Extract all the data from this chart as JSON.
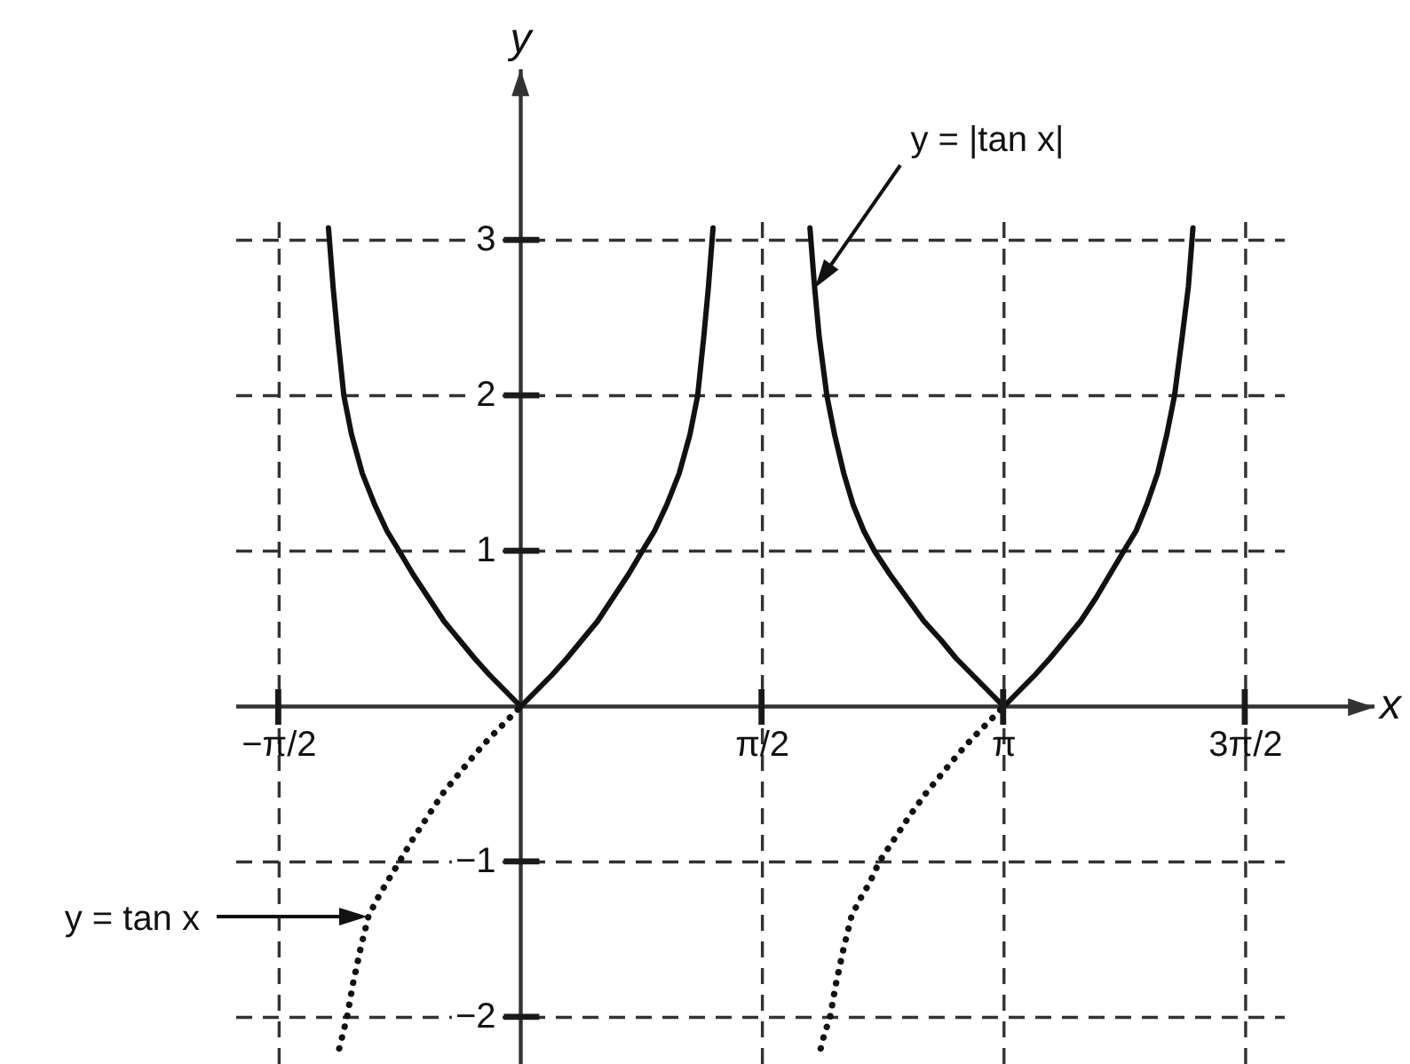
{
  "chart_data": {
    "type": "line",
    "xlabel": "x",
    "ylabel": "y",
    "xlim": [
      -1.85,
      5.55
    ],
    "ylim": [
      -2.3,
      4.1
    ],
    "xticks": [
      {
        "value": -1.5708,
        "label": "−π/2"
      },
      {
        "value": 1.5708,
        "label": "π/2"
      },
      {
        "value": 3.1416,
        "label": "π"
      },
      {
        "value": 4.7124,
        "label": "3π/2"
      }
    ],
    "yticks": [
      -2,
      -1,
      1,
      2,
      3
    ],
    "grid": true,
    "marker": "none",
    "series": [
      {
        "name": "y = |tan x|",
        "color": "#111111",
        "line_style": "solid",
        "x": [
          -1.25,
          -1.22,
          -1.19,
          -1.15,
          -1.1,
          -1.03,
          -0.95,
          -0.87,
          -0.79,
          -0.7,
          -0.6,
          -0.5,
          -0.4,
          -0.3,
          -0.2,
          -0.1,
          0,
          0.1,
          0.2,
          0.3,
          0.4,
          0.5,
          0.6,
          0.7,
          0.79,
          0.87,
          0.95,
          1.03,
          1.1,
          1.15,
          1.19,
          1.22,
          1.25,
          1.57,
          1.88,
          1.91,
          1.94,
          1.99,
          2.04,
          2.1,
          2.16,
          2.23,
          2.3,
          2.4,
          2.51,
          2.62,
          2.73,
          2.83,
          2.94,
          3.04,
          3.14,
          3.24,
          3.34,
          3.44,
          3.54,
          3.64,
          3.74,
          3.83,
          3.92,
          4.0,
          4.07,
          4.14,
          4.2,
          4.25,
          4.3,
          4.34,
          4.37
        ],
        "values": [
          3.08,
          2.7,
          2.38,
          2.0,
          1.75,
          1.5,
          1.3,
          1.13,
          1.0,
          0.85,
          0.7,
          0.55,
          0.43,
          0.31,
          0.2,
          0.1,
          0,
          0.1,
          0.2,
          0.31,
          0.43,
          0.55,
          0.7,
          0.85,
          1.0,
          1.13,
          1.3,
          1.5,
          1.75,
          2.0,
          2.38,
          2.7,
          3.08,
          null,
          3.08,
          2.7,
          2.38,
          2.0,
          1.75,
          1.5,
          1.3,
          1.13,
          1.0,
          0.85,
          0.7,
          0.55,
          0.43,
          0.31,
          0.2,
          0.1,
          0,
          0.1,
          0.2,
          0.31,
          0.43,
          0.55,
          0.7,
          0.85,
          1.0,
          1.13,
          1.3,
          1.5,
          1.75,
          2.0,
          2.38,
          2.7,
          3.08
        ]
      },
      {
        "color": "#111111",
        "line_style": "dotted",
        "x": [
          -1.18,
          -1.16,
          -1.13,
          -1.09,
          -1.04,
          -0.99,
          -0.94,
          -0.87,
          -0.79,
          -0.7,
          -0.6,
          -0.5,
          -0.4,
          -0.3,
          -0.2,
          -0.1,
          0,
          1.0,
          1.95,
          1.97,
          2.01,
          2.05,
          2.1,
          2.15,
          2.2,
          2.27,
          2.33,
          2.43,
          2.53,
          2.64,
          2.74,
          2.84,
          2.94,
          3.04,
          3.14
        ],
        "values": [
          -2.2,
          -2.12,
          -2.0,
          -1.78,
          -1.55,
          -1.35,
          -1.25,
          -1.13,
          -1.0,
          -0.85,
          -0.7,
          -0.55,
          -0.43,
          -0.31,
          -0.2,
          -0.1,
          0,
          null,
          -2.2,
          -2.12,
          -2.0,
          -1.78,
          -1.55,
          -1.35,
          -1.25,
          -1.13,
          -1.0,
          -0.85,
          -0.7,
          -0.55,
          -0.43,
          -0.31,
          -0.2,
          -0.1,
          0
        ]
      }
    ],
    "annotations": [
      "y = tan x"
    ]
  }
}
